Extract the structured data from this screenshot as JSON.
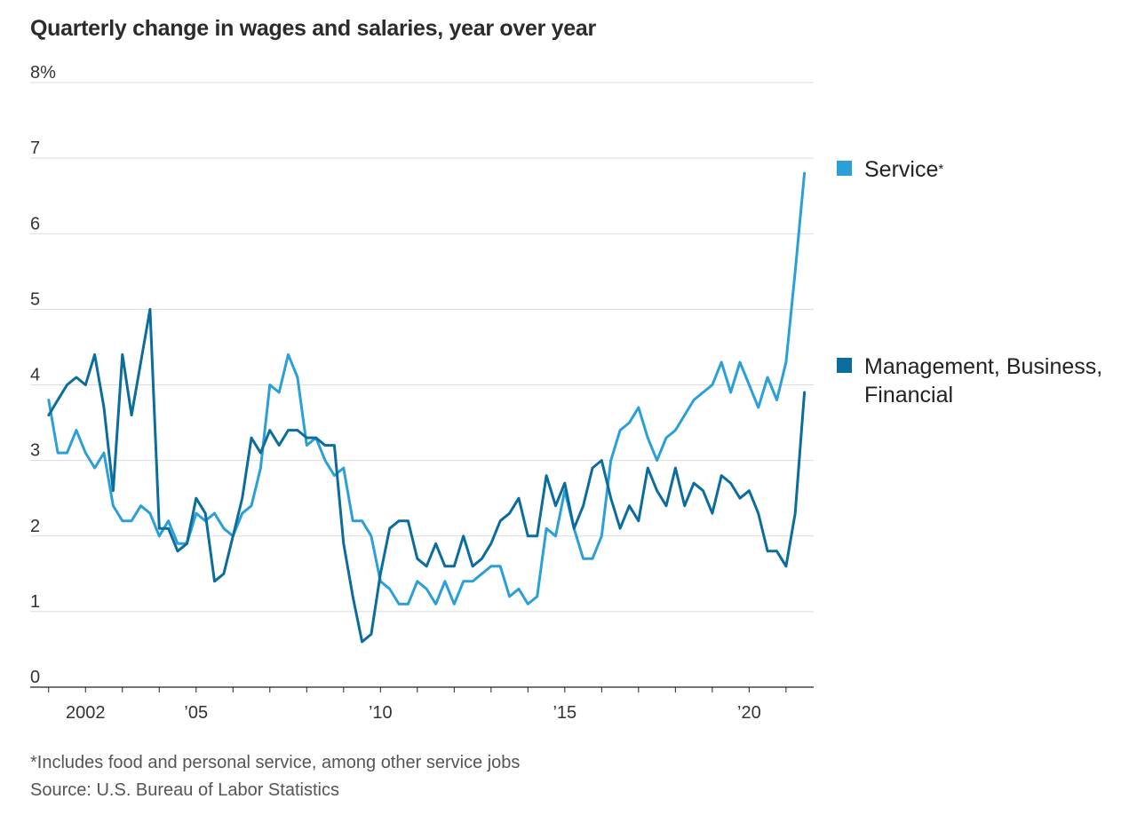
{
  "title": "Quarterly change in wages and salaries, year over year",
  "legend": {
    "service": {
      "label": "Service",
      "marker": "*",
      "color": "#2b9fd8"
    },
    "management": {
      "label_line1": "Management, Business,",
      "label_line2": "Financial",
      "color": "#0a6d9e"
    }
  },
  "footnotes": {
    "note": "*Includes food and personal service, among other service jobs",
    "source": "Source: U.S. Bureau of Labor Statistics"
  },
  "chart_data": {
    "type": "line",
    "title": "Quarterly change in wages and salaries, year over year",
    "ylim": [
      0,
      8
    ],
    "xlim": [
      2000.5,
      2021.75
    ],
    "y_ticks": [
      {
        "value": 0,
        "label": "0"
      },
      {
        "value": 1,
        "label": "1"
      },
      {
        "value": 2,
        "label": "2"
      },
      {
        "value": 3,
        "label": "3"
      },
      {
        "value": 4,
        "label": "4"
      },
      {
        "value": 5,
        "label": "5"
      },
      {
        "value": 6,
        "label": "6"
      },
      {
        "value": 7,
        "label": "7"
      },
      {
        "value": 8,
        "label": "8%"
      }
    ],
    "x_ticks": [
      {
        "value": 2002,
        "label": "2002"
      },
      {
        "value": 2005,
        "label": "’05"
      },
      {
        "value": 2010,
        "label": "’10"
      },
      {
        "value": 2015,
        "label": "’15"
      },
      {
        "value": 2020,
        "label": "’20"
      }
    ],
    "grid": true,
    "series": [
      {
        "name": "Service*",
        "color": "#2b9fd8",
        "x_start": 2001.0,
        "x_step": 0.25,
        "values": [
          3.8,
          3.1,
          3.1,
          3.4,
          3.1,
          2.9,
          3.1,
          2.4,
          2.2,
          2.2,
          2.4,
          2.3,
          2.0,
          2.2,
          1.9,
          1.9,
          2.3,
          2.2,
          2.3,
          2.1,
          2.0,
          2.3,
          2.4,
          2.9,
          4.0,
          3.9,
          4.4,
          4.1,
          3.2,
          3.3,
          3.0,
          2.8,
          2.9,
          2.2,
          2.2,
          2.0,
          1.4,
          1.3,
          1.1,
          1.1,
          1.4,
          1.3,
          1.1,
          1.4,
          1.1,
          1.4,
          1.4,
          1.5,
          1.6,
          1.6,
          1.2,
          1.3,
          1.1,
          1.2,
          2.1,
          2.0,
          2.6,
          2.1,
          1.7,
          1.7,
          2.0,
          3.0,
          3.4,
          3.5,
          3.7,
          3.3,
          3.0,
          3.3,
          3.4,
          3.6,
          3.8,
          3.9,
          4.0,
          4.3,
          3.9,
          4.3,
          4.0,
          3.7,
          4.1,
          3.8,
          4.3,
          5.5,
          6.8
        ]
      },
      {
        "name": "Management, Business, Financial",
        "color": "#0a6d9e",
        "x_start": 2001.0,
        "x_step": 0.25,
        "values": [
          3.6,
          3.8,
          4.0,
          4.1,
          4.0,
          4.4,
          3.7,
          2.6,
          4.4,
          3.6,
          4.3,
          5.0,
          2.1,
          2.1,
          1.8,
          1.9,
          2.5,
          2.3,
          1.4,
          1.5,
          2.0,
          2.5,
          3.3,
          3.1,
          3.4,
          3.2,
          3.4,
          3.4,
          3.3,
          3.3,
          3.2,
          3.2,
          1.9,
          1.2,
          0.6,
          0.7,
          1.5,
          2.1,
          2.2,
          2.2,
          1.7,
          1.6,
          1.9,
          1.6,
          1.6,
          2.0,
          1.6,
          1.7,
          1.9,
          2.2,
          2.3,
          2.5,
          2.0,
          2.0,
          2.8,
          2.4,
          2.7,
          2.1,
          2.4,
          2.9,
          3.0,
          2.5,
          2.1,
          2.4,
          2.2,
          2.9,
          2.6,
          2.4,
          2.9,
          2.4,
          2.7,
          2.6,
          2.3,
          2.8,
          2.7,
          2.5,
          2.6,
          2.3,
          1.8,
          1.8,
          1.6,
          2.3,
          3.9
        ]
      }
    ]
  }
}
